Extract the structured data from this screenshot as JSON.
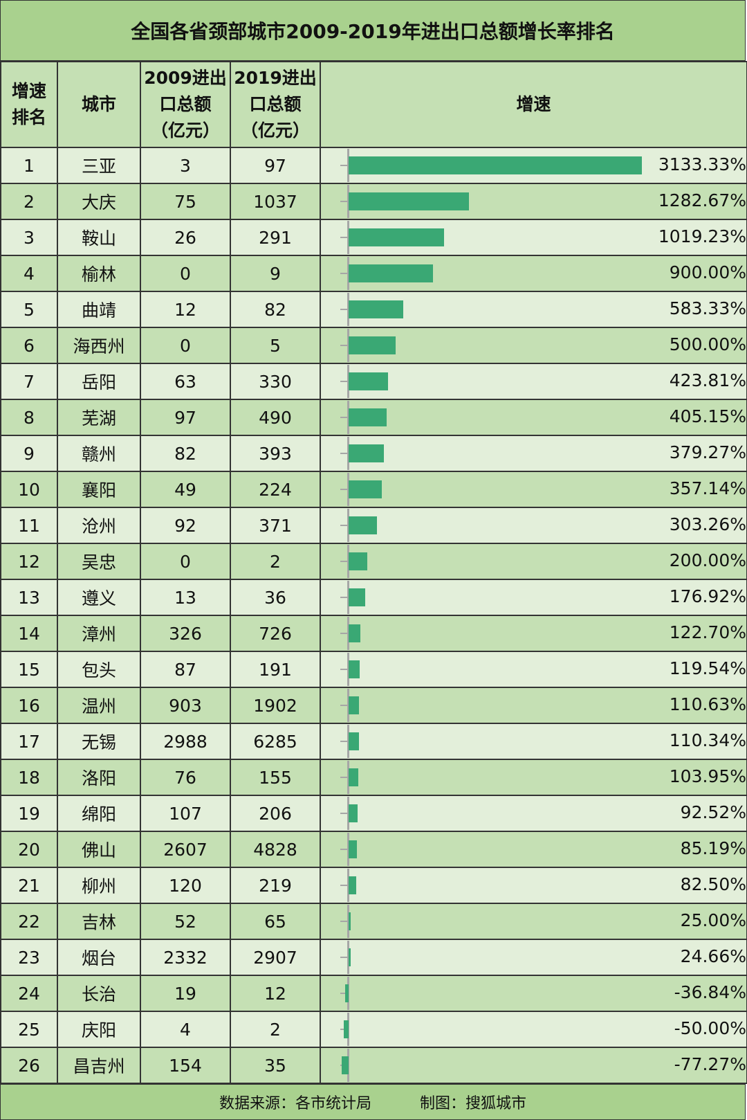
{
  "title": "全国各省颈部城市2009-2019年进出口总额增长率排名",
  "headers": {
    "rank": "增速\n排名",
    "city": "城市",
    "y2009": "2009进出\n口总额\n（亿元）",
    "y2019": "2019进出\n口总额\n（亿元）",
    "growth": "增速"
  },
  "colors": {
    "bar": "#3aa874",
    "header_bg": "#a9d18e",
    "row_light": "#e3efda",
    "row_dark": "#c5e0b4"
  },
  "chart_data": {
    "type": "bar",
    "orientation": "horizontal",
    "title": "全国各省颈部城市2009-2019年进出口总额增长率排名",
    "xlabel": "增速",
    "rows": [
      {
        "rank": "1",
        "city": "三亚",
        "v2009": "3",
        "v2019": "97",
        "growth": 3133.33,
        "growth_label": "3133.33%"
      },
      {
        "rank": "2",
        "city": "大庆",
        "v2009": "75",
        "v2019": "1037",
        "growth": 1282.67,
        "growth_label": "1282.67%"
      },
      {
        "rank": "3",
        "city": "鞍山",
        "v2009": "26",
        "v2019": "291",
        "growth": 1019.23,
        "growth_label": "1019.23%"
      },
      {
        "rank": "4",
        "city": "榆林",
        "v2009": "0",
        "v2019": "9",
        "growth": 900.0,
        "growth_label": "900.00%"
      },
      {
        "rank": "5",
        "city": "曲靖",
        "v2009": "12",
        "v2019": "82",
        "growth": 583.33,
        "growth_label": "583.33%"
      },
      {
        "rank": "6",
        "city": "海西州",
        "v2009": "0",
        "v2019": "5",
        "growth": 500.0,
        "growth_label": "500.00%"
      },
      {
        "rank": "7",
        "city": "岳阳",
        "v2009": "63",
        "v2019": "330",
        "growth": 423.81,
        "growth_label": "423.81%"
      },
      {
        "rank": "8",
        "city": "芜湖",
        "v2009": "97",
        "v2019": "490",
        "growth": 405.15,
        "growth_label": "405.15%"
      },
      {
        "rank": "9",
        "city": "赣州",
        "v2009": "82",
        "v2019": "393",
        "growth": 379.27,
        "growth_label": "379.27%"
      },
      {
        "rank": "10",
        "city": "襄阳",
        "v2009": "49",
        "v2019": "224",
        "growth": 357.14,
        "growth_label": "357.14%"
      },
      {
        "rank": "11",
        "city": "沧州",
        "v2009": "92",
        "v2019": "371",
        "growth": 303.26,
        "growth_label": "303.26%"
      },
      {
        "rank": "12",
        "city": "吴忠",
        "v2009": "0",
        "v2019": "2",
        "growth": 200.0,
        "growth_label": "200.00%"
      },
      {
        "rank": "13",
        "city": "遵义",
        "v2009": "13",
        "v2019": "36",
        "growth": 176.92,
        "growth_label": "176.92%"
      },
      {
        "rank": "14",
        "city": "漳州",
        "v2009": "326",
        "v2019": "726",
        "growth": 122.7,
        "growth_label": "122.70%"
      },
      {
        "rank": "15",
        "city": "包头",
        "v2009": "87",
        "v2019": "191",
        "growth": 119.54,
        "growth_label": "119.54%"
      },
      {
        "rank": "16",
        "city": "温州",
        "v2009": "903",
        "v2019": "1902",
        "growth": 110.63,
        "growth_label": "110.63%"
      },
      {
        "rank": "17",
        "city": "无锡",
        "v2009": "2988",
        "v2019": "6285",
        "growth": 110.34,
        "growth_label": "110.34%"
      },
      {
        "rank": "18",
        "city": "洛阳",
        "v2009": "76",
        "v2019": "155",
        "growth": 103.95,
        "growth_label": "103.95%"
      },
      {
        "rank": "19",
        "city": "绵阳",
        "v2009": "107",
        "v2019": "206",
        "growth": 92.52,
        "growth_label": "92.52%"
      },
      {
        "rank": "20",
        "city": "佛山",
        "v2009": "2607",
        "v2019": "4828",
        "growth": 85.19,
        "growth_label": "85.19%"
      },
      {
        "rank": "21",
        "city": "柳州",
        "v2009": "120",
        "v2019": "219",
        "growth": 82.5,
        "growth_label": "82.50%"
      },
      {
        "rank": "22",
        "city": "吉林",
        "v2009": "52",
        "v2019": "65",
        "growth": 25.0,
        "growth_label": "25.00%"
      },
      {
        "rank": "23",
        "city": "烟台",
        "v2009": "2332",
        "v2019": "2907",
        "growth": 24.66,
        "growth_label": "24.66%"
      },
      {
        "rank": "24",
        "city": "长治",
        "v2009": "19",
        "v2019": "12",
        "growth": -36.84,
        "growth_label": "-36.84%"
      },
      {
        "rank": "25",
        "city": "庆阳",
        "v2009": "4",
        "v2019": "2",
        "growth": -50.0,
        "growth_label": "-50.00%"
      },
      {
        "rank": "26",
        "city": "昌吉州",
        "v2009": "154",
        "v2019": "35",
        "growth": -77.27,
        "growth_label": "-77.27%"
      }
    ]
  },
  "footer": {
    "source": "数据来源：各市统计局",
    "credit": "制图：搜狐城市"
  }
}
